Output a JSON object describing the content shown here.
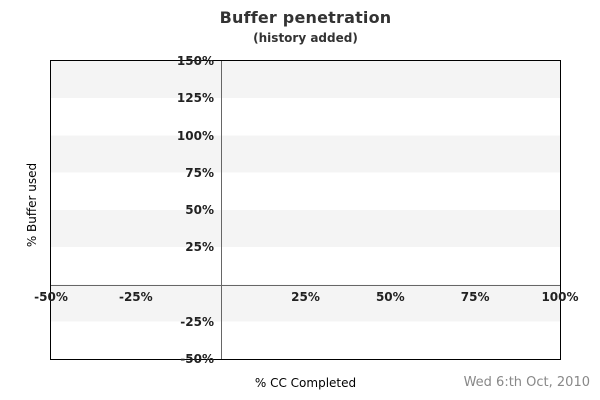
{
  "chart_data": {
    "type": "line",
    "title": "Buffer penetration",
    "subtitle": "(history added)",
    "xlabel": "% CC Completed",
    "ylabel": "% Buffer used",
    "xlim": [
      -50,
      100
    ],
    "ylim": [
      -50,
      150
    ],
    "x_ticks": [
      {
        "value": -50,
        "label": "-50%"
      },
      {
        "value": -25,
        "label": "-25%"
      },
      {
        "value": 25,
        "label": "25%"
      },
      {
        "value": 50,
        "label": "50%"
      },
      {
        "value": 75,
        "label": "75%"
      },
      {
        "value": 100,
        "label": "100%"
      }
    ],
    "y_ticks": [
      {
        "value": 150,
        "label": "150%"
      },
      {
        "value": 125,
        "label": "125%"
      },
      {
        "value": 100,
        "label": "100%"
      },
      {
        "value": 75,
        "label": "75%"
      },
      {
        "value": 50,
        "label": "50%"
      },
      {
        "value": 25,
        "label": "25%"
      },
      {
        "value": -25,
        "label": "-25%"
      },
      {
        "value": -50,
        "label": "-50%"
      }
    ],
    "series": [],
    "grid": "alternating horizontal bands every 25%, gray band at top, zero axes drawn as lines, no tick marks, legend off",
    "annotation_date": "Wed 6:th Oct, 2010",
    "colors": {
      "band_gray": "#f4f4f4",
      "band_white": "#ffffff",
      "zero_line": "#666666",
      "plot_border": "#000000",
      "tick_text": "#222222",
      "title_text": "#333333",
      "date_text": "#888888"
    }
  }
}
